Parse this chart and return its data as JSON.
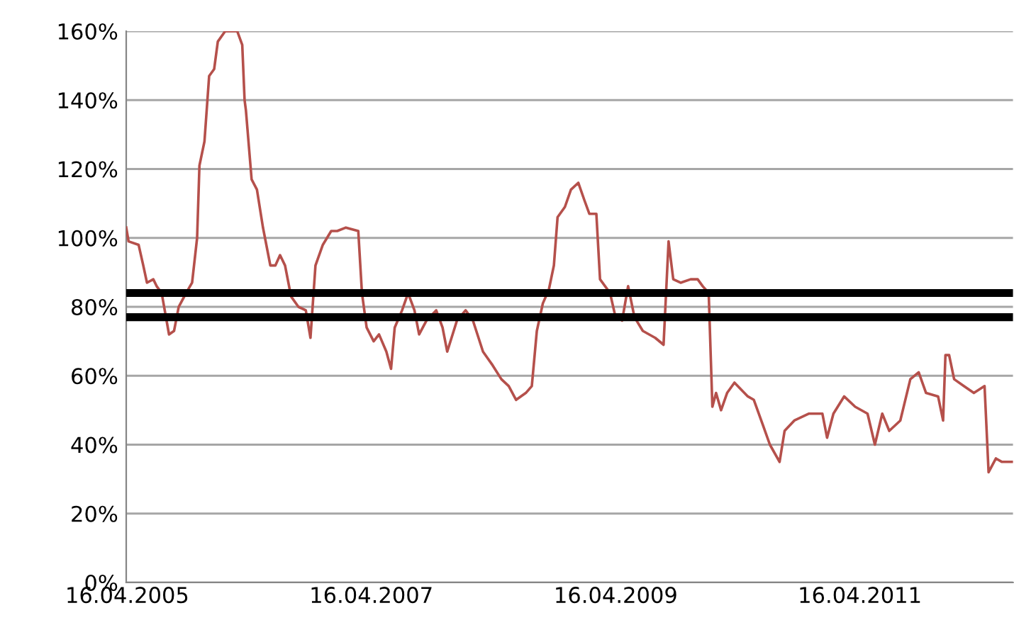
{
  "chart_data": {
    "type": "line",
    "x": [
      "2005-04-13",
      "2005-04-20",
      "2005-05-20",
      "2005-06-03",
      "2005-06-14",
      "2005-07-03",
      "2005-07-13",
      "2005-07-28",
      "2005-08-19",
      "2005-09-03",
      "2005-09-17",
      "2005-10-09",
      "2005-10-27",
      "2005-11-11",
      "2005-11-18",
      "2005-12-03",
      "2005-12-17",
      "2006-01-01",
      "2006-01-12",
      "2006-02-03",
      "2006-03-11",
      "2006-03-26",
      "2006-04-02",
      "2006-04-06",
      "2006-04-23",
      "2006-05-09",
      "2006-05-27",
      "2006-06-18",
      "2006-07-03",
      "2006-07-17",
      "2006-08-01",
      "2006-08-19",
      "2006-09-10",
      "2006-10-02",
      "2006-10-16",
      "2006-10-31",
      "2006-11-22",
      "2006-12-17",
      "2007-01-04",
      "2007-01-30",
      "2007-03-08",
      "2007-03-19",
      "2007-04-02",
      "2007-04-23",
      "2007-05-09",
      "2007-05-31",
      "2007-06-14",
      "2007-06-25",
      "2007-07-17",
      "2007-08-04",
      "2007-08-23",
      "2007-09-06",
      "2007-09-28",
      "2007-10-27",
      "2007-11-15",
      "2007-11-29",
      "2007-12-28",
      "2008-01-23",
      "2008-02-14",
      "2008-03-15",
      "2008-04-13",
      "2008-05-09",
      "2008-05-31",
      "2008-06-22",
      "2008-07-21",
      "2008-08-08",
      "2008-08-23",
      "2008-09-10",
      "2008-09-28",
      "2008-10-13",
      "2008-10-24",
      "2008-11-15",
      "2008-12-03",
      "2008-12-25",
      "2009-01-12",
      "2009-01-27",
      "2009-02-17",
      "2009-02-28",
      "2009-03-30",
      "2009-04-13",
      "2009-05-05",
      "2009-05-23",
      "2009-06-11",
      "2009-07-06",
      "2009-08-12",
      "2009-09-06",
      "2009-09-21",
      "2009-10-05",
      "2009-10-27",
      "2009-11-26",
      "2009-12-17",
      "2010-01-01",
      "2010-01-19",
      "2010-01-30",
      "2010-02-10",
      "2010-02-25",
      "2010-03-15",
      "2010-04-06",
      "2010-05-16",
      "2010-06-03",
      "2010-06-29",
      "2010-07-21",
      "2010-08-19",
      "2010-09-03",
      "2010-10-02",
      "2010-11-15",
      "2010-12-25",
      "2011-01-08",
      "2011-01-27",
      "2011-02-28",
      "2011-04-02",
      "2011-05-09",
      "2011-05-31",
      "2011-06-22",
      "2011-07-13",
      "2011-08-15",
      "2011-09-14",
      "2011-10-09",
      "2011-10-31",
      "2011-12-06",
      "2011-12-21",
      "2011-12-28",
      "2012-01-08",
      "2012-01-23",
      "2012-02-21",
      "2012-03-22",
      "2012-04-23",
      "2012-05-05",
      "2012-05-27",
      "2012-06-14",
      "2012-07-17"
    ],
    "series": [
      {
        "color": "#b5504b",
        "values": [
          103,
          99,
          98,
          92,
          87,
          88,
          86,
          84,
          72,
          73,
          80,
          84,
          87,
          100,
          121,
          128,
          147,
          149,
          157,
          160,
          160,
          156,
          140,
          137,
          117,
          114,
          103,
          92,
          92,
          95,
          92,
          83,
          80,
          79,
          71,
          92,
          98,
          102,
          102,
          103,
          102,
          84,
          74,
          70,
          72,
          67,
          62,
          74,
          79,
          84,
          79,
          72,
          76,
          79,
          74,
          67,
          76,
          79,
          76,
          67,
          63,
          59,
          57,
          53,
          55,
          57,
          73,
          81,
          85,
          92,
          106,
          109,
          114,
          116,
          111,
          107,
          107,
          88,
          84,
          78,
          76,
          86,
          77,
          73,
          71,
          69,
          99,
          88,
          87,
          88,
          88,
          86,
          84,
          51,
          55,
          50,
          55,
          58,
          54,
          53,
          46,
          40,
          35,
          44,
          47,
          49,
          49,
          42,
          49,
          54,
          51,
          49,
          40,
          49,
          44,
          47,
          59,
          61,
          55,
          54,
          47,
          66,
          66,
          59,
          57,
          55,
          57,
          32,
          36,
          35,
          35
        ]
      }
    ],
    "xlim": [
      "2005-04-13",
      "2012-07-17"
    ],
    "xticks": [
      {
        "value": "2005-04-16",
        "label": "16.04.2005"
      },
      {
        "value": "2007-04-16",
        "label": "16.04.2007"
      },
      {
        "value": "2009-04-16",
        "label": "16.04.2009"
      },
      {
        "value": "2011-04-16",
        "label": "16.04.2011"
      }
    ],
    "ylim": [
      0,
      160
    ],
    "yticks": [
      {
        "value": 0,
        "label": "0%"
      },
      {
        "value": 20,
        "label": "20%"
      },
      {
        "value": 40,
        "label": "40%"
      },
      {
        "value": 60,
        "label": "60%"
      },
      {
        "value": 80,
        "label": "80%"
      },
      {
        "value": 100,
        "label": "100%"
      },
      {
        "value": 120,
        "label": "120%"
      },
      {
        "value": 140,
        "label": "140%"
      },
      {
        "value": 160,
        "label": "160%"
      }
    ],
    "grid": "y",
    "ref_lines": [
      {
        "axis": "y",
        "value": 84,
        "color": "#000000"
      },
      {
        "axis": "y",
        "value": 77,
        "color": "#000000"
      }
    ]
  }
}
